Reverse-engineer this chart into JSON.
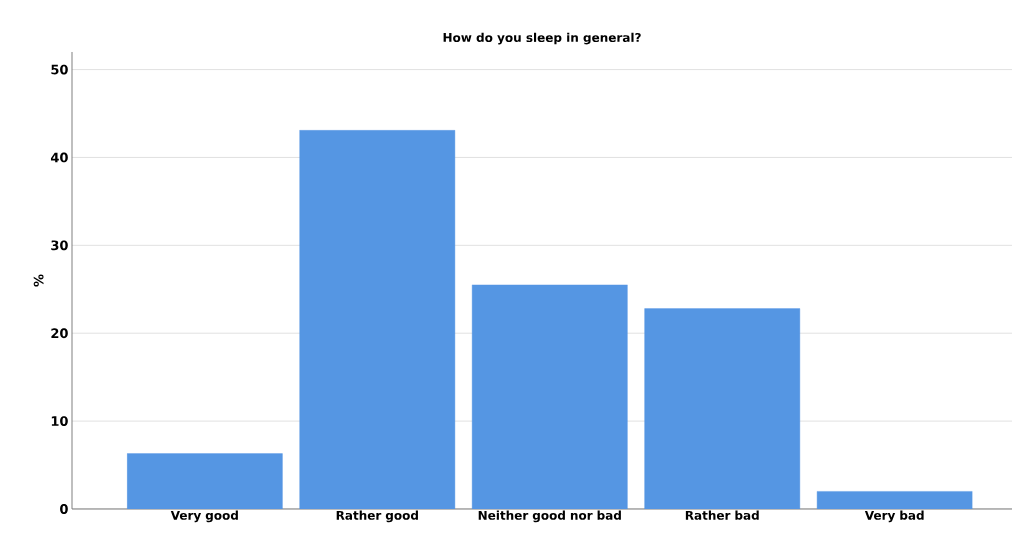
{
  "chart_data": {
    "type": "bar",
    "title": "How do you sleep in general?",
    "ylabel": "%",
    "categories": [
      "Very good",
      "Rather good",
      "Neither good nor bad",
      "Rather bad",
      "Very bad"
    ],
    "values": [
      6.3,
      43.1,
      25.5,
      22.8,
      2.0
    ],
    "color": "#5596e3",
    "ylim": [
      0,
      52
    ],
    "yticks": [
      0,
      10,
      20,
      30,
      40,
      50
    ],
    "grid": "y"
  }
}
